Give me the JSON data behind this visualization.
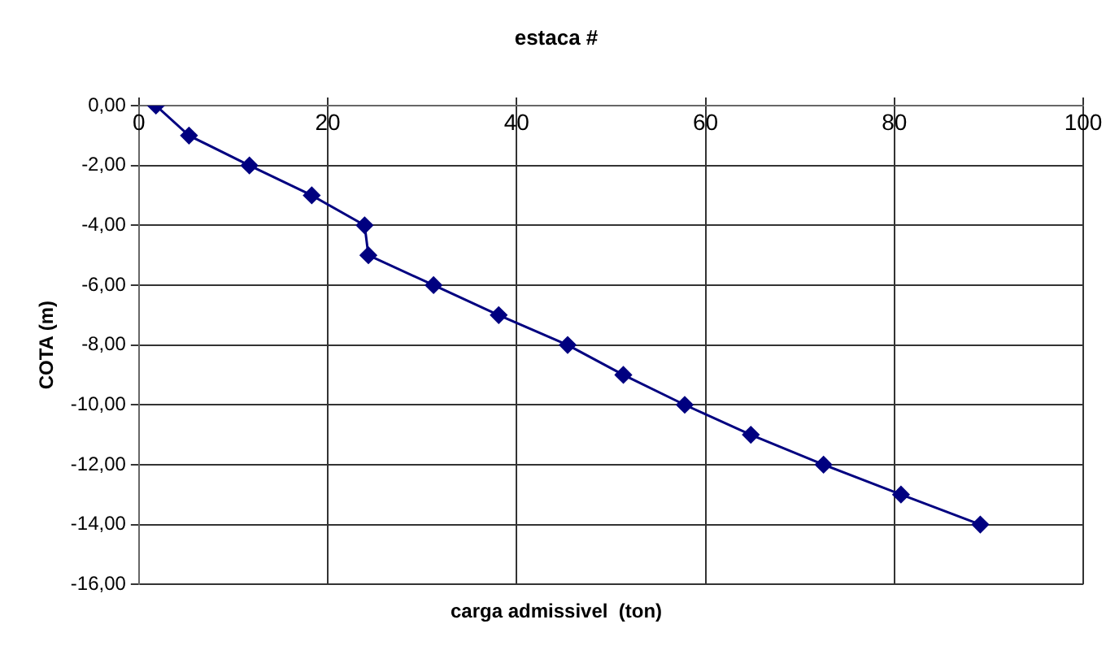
{
  "chart_data": {
    "type": "line",
    "title": "estaca #",
    "xlabel": "carga admissivel  (ton)",
    "ylabel": "COTA (m)",
    "x": [
      1.8,
      5.3,
      11.7,
      18.3,
      23.9,
      24.3,
      31.2,
      38.1,
      45.4,
      51.3,
      57.8,
      64.8,
      72.5,
      80.7,
      89.1
    ],
    "series": [
      {
        "color": "#000080",
        "values": [
          0,
          -1,
          -2,
          -3,
          -4,
          -5,
          -6,
          -7,
          -8,
          -9,
          -10,
          -11,
          -12,
          -13,
          -14
        ]
      }
    ],
    "xlim": [
      0,
      100
    ],
    "xticks": [
      0,
      20,
      40,
      60,
      80,
      100
    ],
    "ylim": [
      -16,
      0
    ],
    "yticks": [
      {
        "value": 0,
        "label": "0,00"
      },
      {
        "value": -2,
        "label": "-2,00"
      },
      {
        "value": -4,
        "label": "-4,00"
      },
      {
        "value": -6,
        "label": "-6,00"
      },
      {
        "value": -8,
        "label": "-8,00"
      },
      {
        "value": -10,
        "label": "-10,00"
      },
      {
        "value": -12,
        "label": "-12,00"
      },
      {
        "value": -14,
        "label": "-14,00"
      },
      {
        "value": -16,
        "label": "-16,00"
      }
    ],
    "grid": true,
    "legend": false,
    "marker": "diamond",
    "line_style": "solid"
  }
}
